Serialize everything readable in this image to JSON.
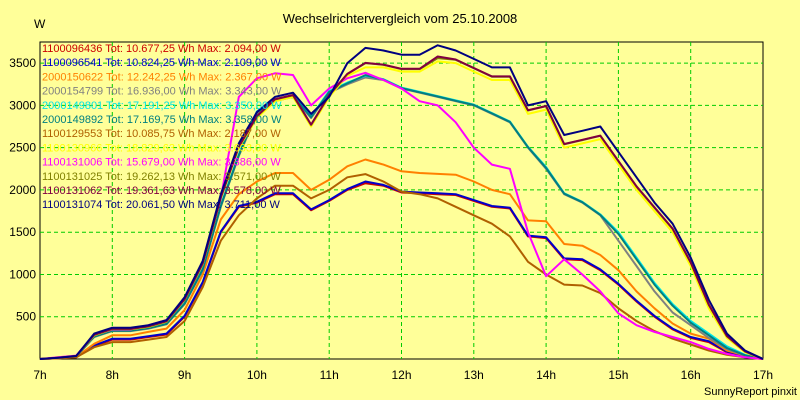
{
  "chart_data": {
    "type": "line",
    "title": "Wechselrichtervergleich vom 25.10.2008",
    "ylabel": "W",
    "xlabel": "",
    "footer": "SunnyReport pinxit",
    "xlim": [
      7,
      17
    ],
    "ylim": [
      0,
      3750
    ],
    "grid": true,
    "legend_position": "top-left",
    "x_ticks": [
      7,
      8,
      9,
      10,
      11,
      12,
      13,
      14,
      15,
      16,
      17
    ],
    "x_tick_labels": [
      "7h",
      "8h",
      "9h",
      "10h",
      "11h",
      "12h",
      "13h",
      "14h",
      "15h",
      "16h",
      "17h"
    ],
    "y_ticks": [
      500,
      1000,
      1500,
      2000,
      2500,
      3000,
      3500
    ],
    "y_tick_labels": [
      "500",
      "1000",
      "1500",
      "2000",
      "2500",
      "3000",
      "3500"
    ],
    "x": [
      7,
      7.25,
      7.5,
      7.75,
      8,
      8.25,
      8.5,
      8.75,
      9,
      9.25,
      9.5,
      9.75,
      10,
      10.25,
      10.5,
      10.75,
      11,
      11.25,
      11.5,
      11.75,
      12,
      12.25,
      12.5,
      12.75,
      13,
      13.25,
      13.5,
      13.75,
      14,
      14.25,
      14.5,
      14.75,
      15,
      15.25,
      15.5,
      15.75,
      16,
      16.25,
      16.5,
      16.75,
      17
    ],
    "series": [
      {
        "name": "1100096436 Tot: 10.677,25 Wh Max: 2.094,00 W",
        "color": "#cc0000",
        "values": [
          0,
          10,
          20,
          150,
          230,
          230,
          260,
          290,
          500,
          900,
          1500,
          1800,
          1850,
          1950,
          1950,
          1760,
          1870,
          2000,
          2080,
          2050,
          1970,
          1960,
          1950,
          1940,
          1870,
          1800,
          1780,
          1450,
          1430,
          1180,
          1170,
          1050,
          880,
          680,
          500,
          350,
          250,
          200,
          80,
          30,
          0
        ]
      },
      {
        "name": "1100096541 Tot: 10.824,25 Wh Max: 2.109,00 W",
        "color": "#0000cc",
        "values": [
          0,
          10,
          20,
          160,
          240,
          240,
          270,
          300,
          510,
          910,
          1510,
          1810,
          1860,
          1960,
          1960,
          1770,
          1880,
          2010,
          2100,
          2060,
          1980,
          1970,
          1960,
          1950,
          1880,
          1810,
          1790,
          1460,
          1440,
          1190,
          1180,
          1060,
          890,
          690,
          510,
          360,
          260,
          210,
          90,
          35,
          0
        ]
      },
      {
        "name": "2000150622 Tot: 12.242,25 Wh Max: 2.367,00 W",
        "color": "#ff8000",
        "values": [
          0,
          10,
          25,
          180,
          280,
          280,
          320,
          360,
          580,
          1000,
          1650,
          1950,
          2100,
          2200,
          2200,
          2000,
          2120,
          2280,
          2360,
          2300,
          2220,
          2200,
          2190,
          2180,
          2100,
          2000,
          1950,
          1640,
          1630,
          1360,
          1340,
          1230,
          1050,
          800,
          600,
          420,
          300,
          240,
          100,
          40,
          0
        ]
      },
      {
        "name": "2000154799 Tot: 16.936,00 Wh Max: 3.343,00 W",
        "color": "#808080",
        "values": [
          0,
          15,
          30,
          260,
          330,
          330,
          360,
          410,
          650,
          1050,
          1800,
          2400,
          2900,
          3050,
          3100,
          2850,
          3150,
          3250,
          3330,
          3300,
          3200,
          3150,
          3100,
          3050,
          3000,
          2900,
          2800,
          2500,
          2250,
          1950,
          1850,
          1700,
          1400,
          1100,
          800,
          550,
          400,
          250,
          120,
          40,
          0
        ]
      },
      {
        "name": "2000149801 Tot: 17.191,25 Wh Max: 3.350,00 W",
        "color": "#00e5e5",
        "values": [
          0,
          15,
          30,
          270,
          340,
          340,
          370,
          420,
          660,
          1070,
          1820,
          2420,
          2930,
          3070,
          3120,
          2870,
          3170,
          3270,
          3350,
          3310,
          3210,
          3160,
          3110,
          3060,
          3010,
          2910,
          2810,
          2510,
          2270,
          1960,
          1860,
          1710,
          1500,
          1200,
          900,
          650,
          450,
          300,
          150,
          50,
          0
        ]
      },
      {
        "name": "2000149892 Tot: 17.169,75 Wh Max: 3.358,00 W",
        "color": "#008080",
        "values": [
          0,
          15,
          30,
          265,
          335,
          335,
          365,
          415,
          655,
          1060,
          1810,
          2410,
          2920,
          3060,
          3110,
          2860,
          3160,
          3260,
          3358,
          3305,
          3205,
          3155,
          3105,
          3055,
          3005,
          2905,
          2805,
          2505,
          2260,
          1955,
          1855,
          1705,
          1480,
          1180,
          880,
          630,
          430,
          280,
          130,
          45,
          0
        ]
      },
      {
        "name": "1100129553 Tot: 10.085,75 Wh Max: 2.187,00 W",
        "color": "#b06000",
        "values": [
          0,
          10,
          20,
          140,
          200,
          200,
          230,
          260,
          450,
          850,
          1400,
          1700,
          1900,
          2050,
          2050,
          1900,
          2000,
          2150,
          2187,
          2100,
          1980,
          1950,
          1900,
          1800,
          1700,
          1600,
          1450,
          1150,
          1000,
          880,
          870,
          780,
          600,
          450,
          330,
          240,
          170,
          100,
          50,
          20,
          0
        ]
      },
      {
        "name": "1100130966 Tot: 18.829,63 Wh Max: 3.633,00 W",
        "color": "#ffff00",
        "values": [
          0,
          15,
          35,
          280,
          350,
          350,
          380,
          440,
          700,
          1120,
          1900,
          2500,
          2850,
          3050,
          3100,
          2750,
          3100,
          3350,
          3450,
          3450,
          3400,
          3400,
          3520,
          3500,
          3400,
          3300,
          3300,
          2900,
          2950,
          2500,
          2550,
          2600,
          2300,
          2000,
          1750,
          1500,
          1100,
          600,
          250,
          80,
          0
        ]
      },
      {
        "name": "1100131006 Tot: 15.679,00 Wh Max: 3.386,00 W",
        "color": "#ff00ff",
        "values": [
          0,
          20,
          40,
          290,
          350,
          350,
          400,
          460,
          720,
          1150,
          1900,
          3100,
          3320,
          3380,
          3360,
          3000,
          3200,
          3320,
          3386,
          3300,
          3200,
          3050,
          3000,
          2800,
          2500,
          2300,
          2250,
          1500,
          980,
          1180,
          1000,
          800,
          540,
          400,
          320,
          260,
          200,
          120,
          60,
          20,
          0
        ]
      },
      {
        "name": "1100131025 Tot: 19.262,13 Wh Max: 3.571,00 W",
        "color": "#808000",
        "values": [
          0,
          15,
          35,
          285,
          355,
          355,
          385,
          445,
          705,
          1130,
          1910,
          2510,
          2870,
          3070,
          3120,
          2770,
          3120,
          3370,
          3500,
          3480,
          3430,
          3430,
          3560,
          3540,
          3440,
          3340,
          3340,
          2940,
          2990,
          2540,
          2590,
          2640,
          2340,
          2040,
          1790,
          1540,
          1140,
          640,
          270,
          90,
          0
        ]
      },
      {
        "name": "1100131062 Tot: 19.361,63 Wh Max: 3.578,00 W",
        "color": "#800040",
        "values": [
          0,
          15,
          35,
          288,
          358,
          358,
          388,
          448,
          708,
          1133,
          1913,
          2513,
          2873,
          3073,
          3123,
          2773,
          3123,
          3373,
          3503,
          3483,
          3433,
          3433,
          3578,
          3543,
          3443,
          3343,
          3343,
          2943,
          2993,
          2543,
          2593,
          2643,
          2343,
          2043,
          1793,
          1543,
          1143,
          643,
          272,
          92,
          0
        ]
      },
      {
        "name": "1100131074 Tot: 20.061,50 Wh Max: 3.711,00 W",
        "color": "#000080",
        "values": [
          0,
          15,
          35,
          300,
          370,
          370,
          400,
          460,
          730,
          1160,
          1950,
          2550,
          2920,
          3100,
          3150,
          2900,
          3100,
          3500,
          3680,
          3650,
          3600,
          3600,
          3711,
          3650,
          3550,
          3450,
          3450,
          3000,
          3050,
          2650,
          2700,
          2750,
          2450,
          2150,
          1850,
          1600,
          1200,
          700,
          300,
          100,
          0
        ]
      }
    ]
  }
}
